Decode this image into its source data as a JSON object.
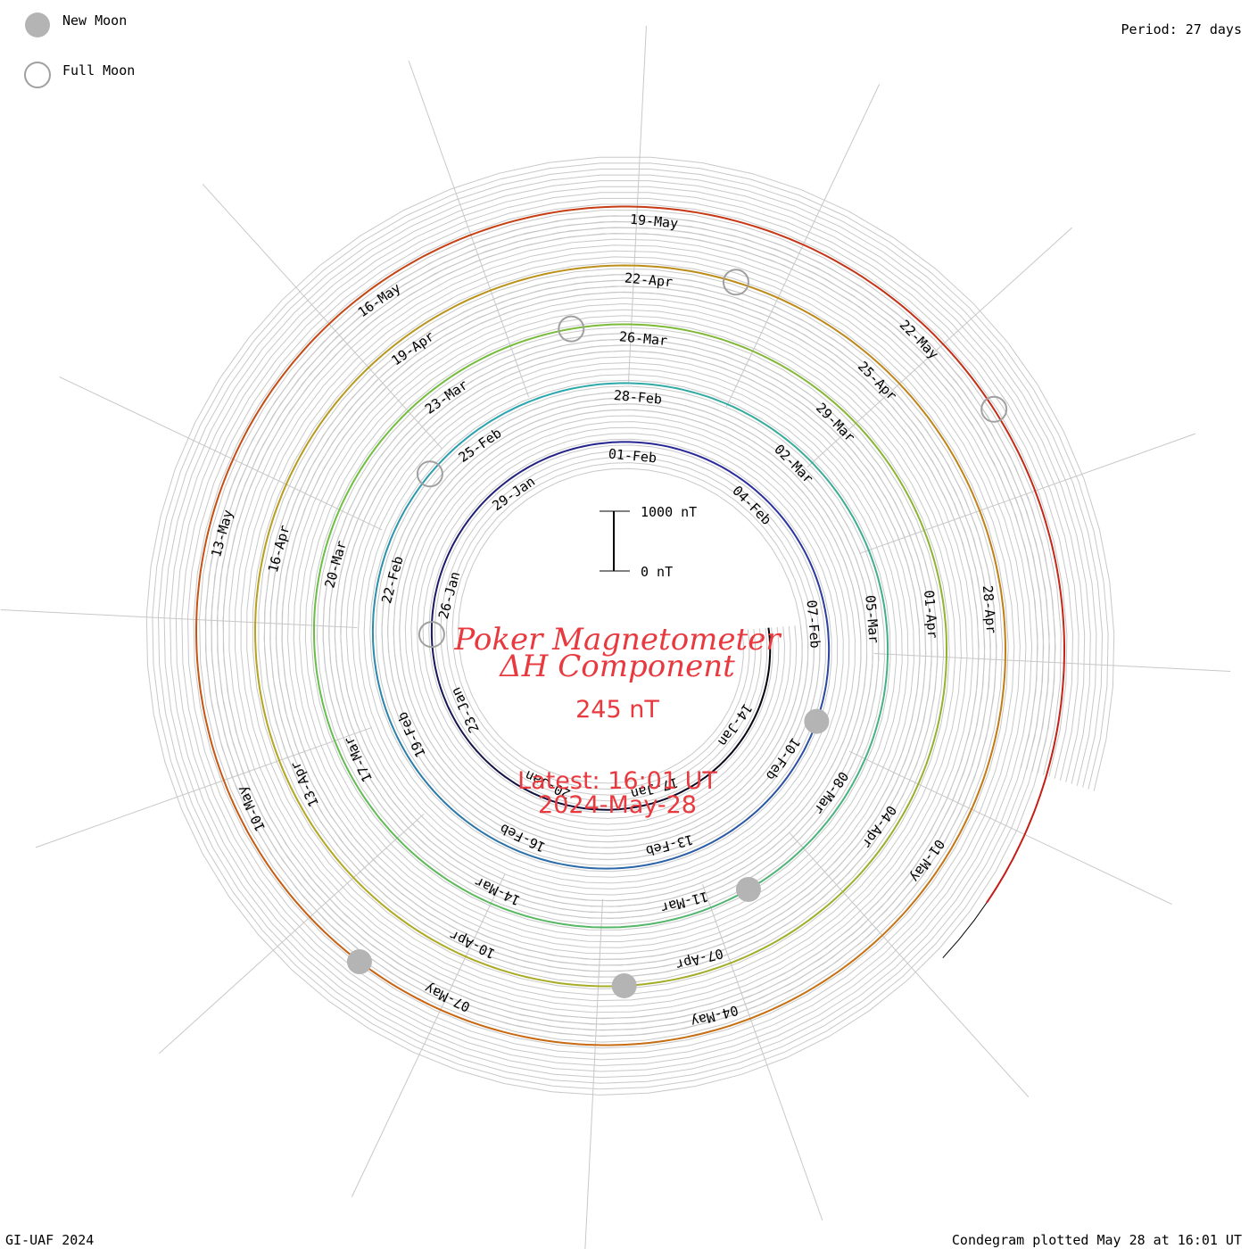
{
  "chart_data": {
    "type": "line",
    "subtype": "polar-spiral condegram",
    "title": "Poker Magnetometer",
    "subtitle": "ΔH Component",
    "scale_value": "245 nT",
    "latest": "Latest: 16:01 UT",
    "latest_date": "2024-May-28",
    "period_label": "Period: 27 days",
    "legend": {
      "new_moon": "New Moon",
      "full_moon": "Full Moon",
      "placement": "top-left"
    },
    "scale_bar": {
      "top_label": "1000 nT",
      "bottom_label": "0 nT"
    },
    "footer_left": "GI-UAF 2024",
    "footer_right": "Condegram plotted May 28 at 16:01 UT",
    "start_date": "2024-01-11",
    "end_date": "2024-05-28",
    "date_labels": [
      "14-Jan",
      "17-Jan",
      "20-Jan",
      "23-Jan",
      "26-Jan",
      "29-Jan",
      "01-Feb",
      "04-Feb",
      "07-Feb",
      "10-Feb",
      "13-Feb",
      "16-Feb",
      "19-Feb",
      "22-Feb",
      "25-Feb",
      "28-Feb",
      "02-Mar",
      "05-Mar",
      "08-Mar",
      "11-Mar",
      "14-Mar",
      "17-Mar",
      "20-Mar",
      "23-Mar",
      "26-Mar",
      "29-Mar",
      "01-Apr",
      "04-Apr",
      "07-Apr",
      "10-Apr",
      "13-Apr",
      "16-Apr",
      "19-Apr",
      "22-Apr",
      "25-Apr",
      "28-Apr",
      "01-May",
      "04-May",
      "07-May",
      "10-May",
      "13-May",
      "16-May",
      "19-May",
      "22-May"
    ],
    "new_moons": [
      "2024-02-09",
      "2024-03-10",
      "2024-04-08",
      "2024-05-08"
    ],
    "full_moons": [
      "2024-01-25",
      "2024-02-24",
      "2024-03-25",
      "2024-04-23",
      "2024-05-23"
    ],
    "series": [
      {
        "name": "",
        "values": [
          {
            "x": "2024-01-11",
            "y": 0
          },
          {
            "x": "2024-02-10",
            "y": 0
          }
        ]
      },
      {
        "name": "",
        "values": [
          {
            "x": "2024-02-10",
            "y": 0
          },
          {
            "x": "2024-03-09",
            "y": 0
          }
        ]
      },
      {
        "name": "",
        "values": [
          {
            "x": "2024-03-09",
            "y": 0
          },
          {
            "x": "2024-04-05",
            "y": 0
          }
        ]
      },
      {
        "name": "",
        "values": [
          {
            "x": "2024-04-05",
            "y": 0
          },
          {
            "x": "2024-05-02",
            "y": 0
          }
        ]
      },
      {
        "name": "",
        "values": [
          {
            "x": "2024-05-02",
            "y": 0
          },
          {
            "x": "2024-05-28",
            "y": 0
          }
        ]
      }
    ],
    "colors": {
      "title": "#e8393f",
      "new_moon": "#b4b4b4",
      "spiral_gradient": [
        "#000000",
        "#2a2aa0",
        "#2aa8b0",
        "#6cc040",
        "#b4a820",
        "#c86a10",
        "#c41818"
      ]
    }
  }
}
